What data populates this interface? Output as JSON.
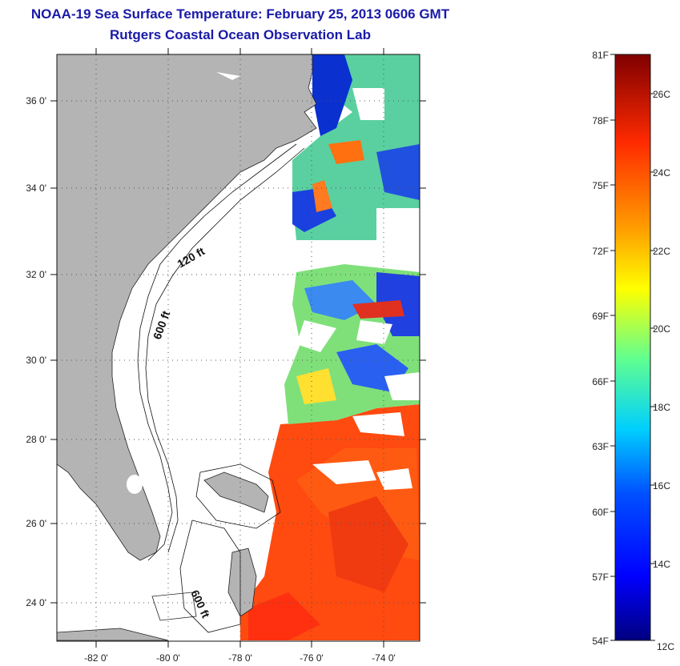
{
  "title_line1": "NOAA-19 Sea Surface Temperature:  February 25, 2013 0606 GMT",
  "title_line2": "Rutgers Coastal Ocean Observation Lab",
  "map": {
    "lat_labels": [
      "36 0'",
      "34 0'",
      "32 0'",
      "30 0'",
      "28 0'",
      "26 0'",
      "24 0'"
    ],
    "lon_labels": [
      "-82 0'",
      "-80 0'",
      "-78 0'",
      "-76 0'",
      "-74 0'"
    ],
    "contour_labels": [
      "120 ft",
      "600 ft",
      "600 ft"
    ],
    "colors": {
      "land": "#b4b4b4",
      "ocean_nodata": "#ffffff",
      "warm": "#ff3c10",
      "cool": "#0a2ad8"
    }
  },
  "colorbar": {
    "fahrenheit_labels": [
      "81F",
      "78F",
      "75F",
      "72F",
      "69F",
      "66F",
      "63F",
      "60F",
      "57F",
      "54F"
    ],
    "celsius_labels": [
      "26C",
      "24C",
      "22C",
      "20C",
      "18C",
      "16C",
      "14C",
      "12C"
    ],
    "range_f": [
      54,
      81
    ],
    "colormap": "jet"
  }
}
